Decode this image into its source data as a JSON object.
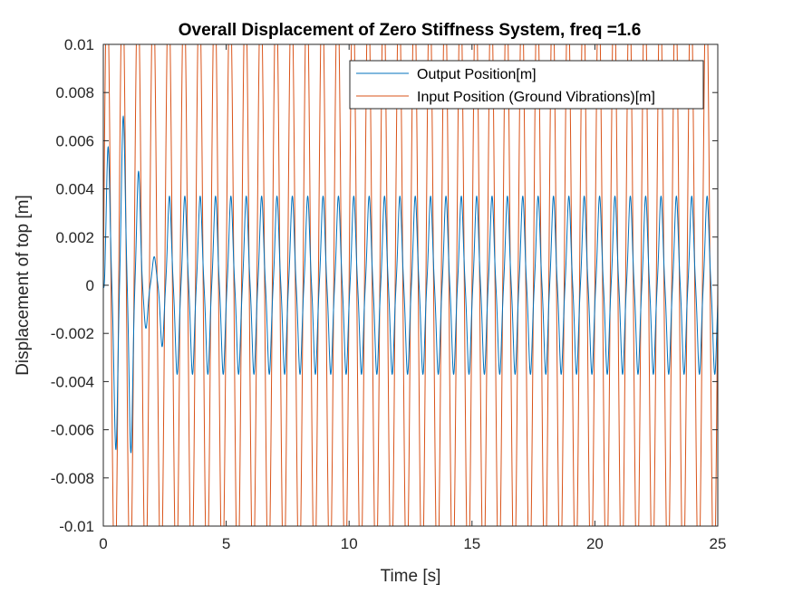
{
  "chart_data": {
    "type": "line",
    "title": "Overall Displacement of Zero Stiffness System, freq =1.6",
    "xlabel": "Time [s]",
    "ylabel": "Displacement of top [m]",
    "xlim": [
      0,
      25
    ],
    "ylim": [
      -0.01,
      0.01
    ],
    "xticks": [
      0,
      5,
      10,
      15,
      20,
      25
    ],
    "yticks": [
      -0.01,
      -0.008,
      -0.006,
      -0.004,
      -0.002,
      0,
      0.002,
      0.004,
      0.006,
      0.008,
      0.01
    ],
    "xtick_labels": [
      "0",
      "5",
      "10",
      "15",
      "20",
      "25"
    ],
    "ytick_labels": [
      "-0.01",
      "-0.008",
      "-0.006",
      "-0.004",
      "-0.002",
      "0",
      "0.002",
      "0.004",
      "0.006",
      "0.008",
      "0.01"
    ],
    "grid": false,
    "legend_position": "top-right",
    "series": [
      {
        "name": "Output Position[m]",
        "color": "#0072BD",
        "frequency_hz": 1.6,
        "steady_state_amplitude": 0.0033,
        "transient_peaks": [
          {
            "t": 0.25,
            "y": 0.0052
          },
          {
            "t": 0.65,
            "y": -0.0068
          },
          {
            "t": 1.05,
            "y": 0.0063
          },
          {
            "t": 1.4,
            "y": -0.0043
          },
          {
            "t": 1.75,
            "y": 0.0019
          },
          {
            "t": 2.0,
            "y": -0.0018
          },
          {
            "t": 2.25,
            "y": 0.0019
          }
        ]
      },
      {
        "name": "Input Position (Ground Vibrations)[m]",
        "color": "#D95319",
        "frequency_hz": 1.6,
        "amplitude": 0.0125
      }
    ]
  }
}
